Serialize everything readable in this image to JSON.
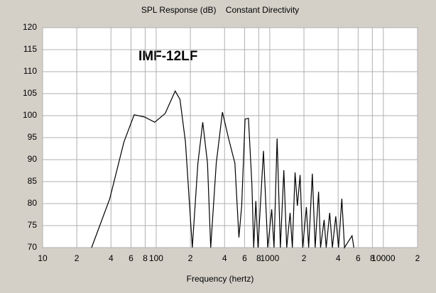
{
  "chart_data": {
    "type": "line",
    "title": "SPL Response (dB)    Constant Directivity",
    "annotation": "IMF-12LF",
    "xlabel": "Frequency (hertz)",
    "xscale": "log",
    "color": "#000000",
    "grid": true,
    "x": [
      27,
      39,
      52,
      64,
      79,
      97,
      120,
      147,
      162,
      181,
      208,
      233,
      257,
      283,
      302,
      338,
      383,
      434,
      493,
      535,
      566,
      606,
      649,
      696,
      722,
      754,
      788,
      880,
      960,
      1040,
      1090,
      1160,
      1240,
      1330,
      1410,
      1510,
      1580,
      1670,
      1750,
      1850,
      1950,
      2100,
      2200,
      2370,
      2510,
      2690,
      2800,
      3010,
      3140,
      3370,
      3560,
      3810,
      4030,
      4310,
      4550,
      5300,
      5500
    ],
    "values": [
      70,
      81.1,
      94,
      100.2,
      99.7,
      98.5,
      100.5,
      105.6,
      103.7,
      94,
      70,
      89.2,
      98.5,
      89.2,
      70,
      89.2,
      100.8,
      94.8,
      89.2,
      72.3,
      79.5,
      99.2,
      99.4,
      84.4,
      70,
      80.6,
      70,
      92,
      70,
      78.7,
      70,
      94.8,
      70,
      87.6,
      70,
      77.9,
      70,
      87.1,
      79.5,
      86.5,
      70,
      79.2,
      70,
      86.8,
      70,
      82.7,
      70,
      76.3,
      70,
      77.9,
      70,
      77.1,
      70,
      81.1,
      70,
      72.7,
      70
    ],
    "xlim": [
      10,
      20000
    ],
    "xticks": [
      10,
      {
        "value": 20,
        "label": "2"
      },
      {
        "value": 40,
        "label": "4"
      },
      {
        "value": 60,
        "label": "6"
      },
      {
        "value": 80,
        "label": "8"
      },
      100,
      {
        "value": 200,
        "label": "2"
      },
      {
        "value": 400,
        "label": "4"
      },
      {
        "value": 600,
        "label": "6"
      },
      {
        "value": 800,
        "label": "8"
      },
      1000,
      {
        "value": 2000,
        "label": "2"
      },
      {
        "value": 4000,
        "label": "4"
      },
      {
        "value": 6000,
        "label": "6"
      },
      {
        "value": 8000,
        "label": "8"
      },
      10000,
      {
        "value": 20000,
        "label": "2"
      }
    ],
    "ylim": [
      70,
      120
    ],
    "yticks": [
      70,
      75,
      80,
      85,
      90,
      95,
      100,
      105,
      110,
      115,
      120
    ]
  }
}
